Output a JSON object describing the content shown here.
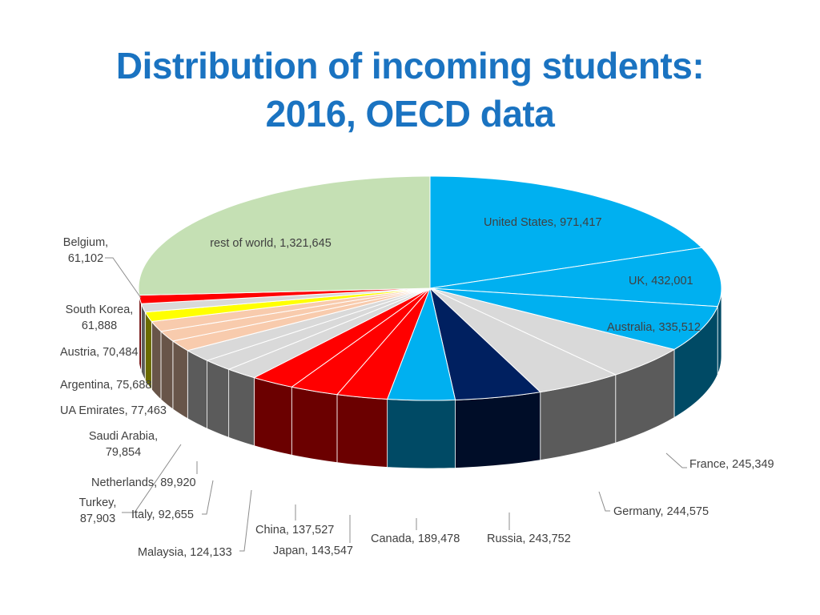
{
  "title_lines": [
    "Distribution of incoming students:",
    "2016, OECD data"
  ],
  "chart_data": {
    "type": "pie",
    "title": "Distribution of incoming students: 2016, OECD data",
    "style": "3d-exploded-none",
    "slices": [
      {
        "label": "United States",
        "value": 971417,
        "display": "971,417",
        "color": "#00b0f0"
      },
      {
        "label": "UK",
        "value": 432001,
        "display": "432,001",
        "color": "#00b0f0"
      },
      {
        "label": "Australia",
        "value": 335512,
        "display": "335,512",
        "color": "#00b0f0"
      },
      {
        "label": "France",
        "value": 245349,
        "display": "245,349",
        "color": "#d9d9d9"
      },
      {
        "label": "Germany",
        "value": 244575,
        "display": "244,575",
        "color": "#d9d9d9"
      },
      {
        "label": "Russia",
        "value": 243752,
        "display": "243,752",
        "color": "#002060"
      },
      {
        "label": "Canada",
        "value": 189478,
        "display": "189,478",
        "color": "#00b0f0"
      },
      {
        "label": "Japan",
        "value": 143547,
        "display": "143,547",
        "color": "#ff0000"
      },
      {
        "label": "China",
        "value": 137527,
        "display": "137,527",
        "color": "#ff0000"
      },
      {
        "label": "Malaysia",
        "value": 124133,
        "display": "124,133",
        "color": "#ff0000"
      },
      {
        "label": "Italy",
        "value": 92655,
        "display": "92,655",
        "color": "#d9d9d9"
      },
      {
        "label": "Turkey",
        "value": 87903,
        "display": "87,903",
        "color": "#d9d9d9"
      },
      {
        "label": "Netherlands",
        "value": 89920,
        "display": "89,920",
        "color": "#d9d9d9"
      },
      {
        "label": "Saudi Arabia",
        "value": 79854,
        "display": "79,854",
        "color": "#f8cbad"
      },
      {
        "label": "UA Emirates",
        "value": 77463,
        "display": "77,463",
        "color": "#f8cbad"
      },
      {
        "label": "Argentina",
        "value": 75688,
        "display": "75,688",
        "color": "#f8cbad"
      },
      {
        "label": "Austria",
        "value": 70484,
        "display": "70,484",
        "color": "#ffff00"
      },
      {
        "label": "South Korea",
        "value": 61888,
        "display": "61,888",
        "color": "#d9d9d9"
      },
      {
        "label": "Belgium",
        "value": 61102,
        "display": "61,102",
        "color": "#ff0000"
      },
      {
        "label": "rest of world",
        "value": 1321645,
        "display": "1,321,645",
        "color": "#c5e0b4"
      }
    ]
  }
}
